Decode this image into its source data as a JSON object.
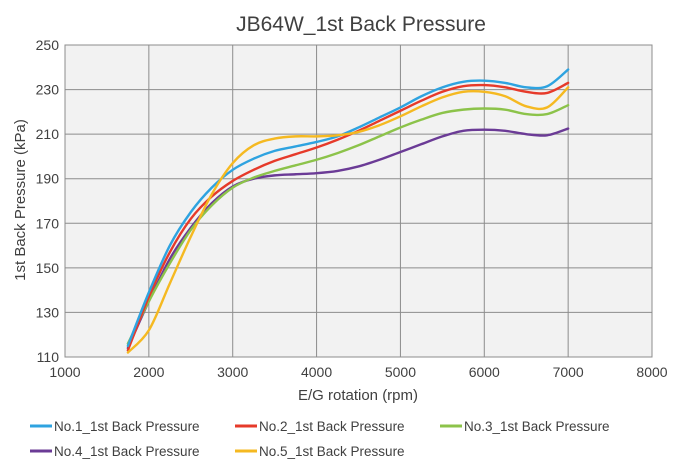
{
  "chart_data": {
    "type": "line",
    "title": "JB64W_1st Back Pressure",
    "xlabel": "E/G rotation (rpm)",
    "ylabel": "1st Back Pressure (kPa)",
    "xlim": [
      1000,
      8000
    ],
    "ylim": [
      110,
      250
    ],
    "x_ticks": [
      1000,
      2000,
      3000,
      4000,
      5000,
      6000,
      7000,
      8000
    ],
    "y_ticks": [
      110,
      130,
      150,
      170,
      190,
      210,
      230,
      250
    ],
    "grid": true,
    "plot_background": "#f2f2f2",
    "legend_position": "bottom",
    "series": [
      {
        "name": "No.1_1st Back Pressure",
        "color": "#2ea3e0",
        "x": [
          1750,
          2000,
          2250,
          2500,
          2750,
          3000,
          3250,
          3500,
          3750,
          4000,
          4250,
          4500,
          4750,
          5000,
          5250,
          5500,
          5750,
          6000,
          6250,
          6500,
          6750,
          7000
        ],
        "y": [
          115,
          139,
          160,
          175,
          186,
          194,
          199,
          202.5,
          204.5,
          206.5,
          209,
          213,
          217.5,
          222,
          227,
          231,
          233.5,
          234,
          233,
          231,
          231.5,
          239
        ]
      },
      {
        "name": "No.2_1st Back Pressure",
        "color": "#e63a2a",
        "x": [
          1750,
          2000,
          2250,
          2500,
          2750,
          3000,
          3250,
          3500,
          3750,
          4000,
          4250,
          4500,
          4750,
          5000,
          5250,
          5500,
          5750,
          6000,
          6250,
          6500,
          6750,
          7000
        ],
        "y": [
          113,
          137,
          157,
          172,
          182,
          189,
          194,
          198,
          201,
          204,
          207.5,
          211.5,
          216,
          220.5,
          225,
          229,
          231.5,
          232,
          231,
          229,
          228.5,
          233
        ]
      },
      {
        "name": "No.3_1st Back Pressure",
        "color": "#8cc34a",
        "x": [
          1750,
          2000,
          2250,
          2500,
          2750,
          3000,
          3250,
          3500,
          3750,
          4000,
          4250,
          4500,
          4750,
          5000,
          5250,
          5500,
          5750,
          6000,
          6250,
          6500,
          6750,
          7000
        ],
        "y": [
          116,
          135,
          152,
          167,
          178,
          186,
          190.5,
          193.5,
          196,
          198.5,
          201.5,
          205,
          209,
          213,
          216.5,
          219.5,
          221,
          221.5,
          221,
          219,
          219,
          223
        ]
      },
      {
        "name": "No.4_1st Back Pressure",
        "color": "#6b3b96",
        "x": [
          1750,
          2000,
          2250,
          2500,
          2750,
          3000,
          3250,
          3500,
          3750,
          4000,
          4250,
          4500,
          4750,
          5000,
          5250,
          5500,
          5750,
          6000,
          6250,
          6500,
          6750,
          7000
        ],
        "y": [
          114,
          135,
          154,
          168,
          179,
          186.5,
          190,
          191.5,
          192,
          192.5,
          193.5,
          195.5,
          198.5,
          202,
          205.5,
          209,
          211.5,
          212,
          211.5,
          210,
          209.5,
          212.5
        ]
      },
      {
        "name": "No.5_1st Back Pressure",
        "color": "#f5b921",
        "x": [
          1750,
          2000,
          2250,
          2500,
          2750,
          3000,
          3250,
          3500,
          3750,
          4000,
          4250,
          4500,
          4750,
          5000,
          5250,
          5500,
          5750,
          6000,
          6250,
          6500,
          6750,
          7000
        ],
        "y": [
          112,
          122,
          143,
          164,
          183,
          197,
          205,
          208,
          209,
          209,
          209.5,
          211,
          214,
          218,
          222.5,
          226.5,
          229,
          229,
          227,
          222.5,
          222,
          231
        ]
      }
    ]
  }
}
